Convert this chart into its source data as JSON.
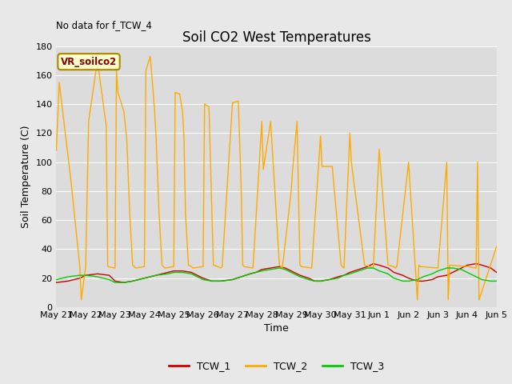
{
  "title": "Soil CO2 West Temperatures",
  "subtitle": "No data for f_TCW_4",
  "xlabel": "Time",
  "ylabel": "Soil Temperature (C)",
  "ylim": [
    0,
    180
  ],
  "yticks": [
    0,
    20,
    40,
    60,
    80,
    100,
    120,
    140,
    160,
    180
  ],
  "fig_bg": "#e8e8e8",
  "plot_bg": "#dcdcdc",
  "legend_label": "VR_soilco2",
  "x_tick_labels": [
    "May 21",
    "May 22",
    "May 23",
    "May 24",
    "May 25",
    "May 26",
    "May 27",
    "May 28",
    "May 29",
    "May 30",
    "May 31",
    "Jun 1",
    "Jun 2",
    "Jun 3",
    "Jun 4",
    "Jun 5"
  ],
  "series_labels": [
    "TCW_1",
    "TCW_2",
    "TCW_3"
  ],
  "colors": [
    "#cc0000",
    "#ffaa00",
    "#00cc00"
  ],
  "tcw1_x": [
    0,
    0.4,
    0.8,
    1.0,
    1.4,
    1.8,
    2.0,
    2.3,
    2.6,
    3.0,
    3.4,
    3.8,
    4.0,
    4.3,
    4.6,
    4.8,
    5.0,
    5.3,
    5.6,
    6.0,
    6.3,
    6.6,
    6.8,
    7.0,
    7.3,
    7.6,
    7.8,
    8.0,
    8.3,
    8.6,
    8.8,
    9.0,
    9.3,
    9.6,
    9.8,
    10.0,
    10.3,
    10.6,
    10.8,
    11.0,
    11.3,
    11.5,
    11.8,
    12.0,
    12.3,
    12.5,
    12.8,
    13.0,
    13.3,
    13.5,
    13.8,
    14.0,
    14.3,
    14.5,
    14.8,
    15.0
  ],
  "tcw1_y": [
    17,
    18,
    20,
    22,
    23,
    22,
    18,
    17,
    18,
    20,
    22,
    24,
    25,
    25,
    24,
    22,
    20,
    18,
    18,
    19,
    21,
    23,
    24,
    26,
    27,
    28,
    27,
    25,
    22,
    20,
    18,
    18,
    19,
    21,
    22,
    24,
    26,
    28,
    30,
    29,
    27,
    24,
    22,
    20,
    18,
    18,
    19,
    21,
    22,
    24,
    27,
    29,
    30,
    29,
    27,
    24
  ],
  "tcw2_x": [
    0,
    0.1,
    0.5,
    0.8,
    0.85,
    1.0,
    1.1,
    1.4,
    1.7,
    1.75,
    2.0,
    2.05,
    2.1,
    2.3,
    2.4,
    2.5,
    2.6,
    2.65,
    2.7,
    3.0,
    3.05,
    3.2,
    3.3,
    3.35,
    3.4,
    3.5,
    3.6,
    3.65,
    3.7,
    4.0,
    4.05,
    4.2,
    4.3,
    4.35,
    4.4,
    4.5,
    4.6,
    4.65,
    5.0,
    5.05,
    5.2,
    5.3,
    5.35,
    5.5,
    5.6,
    5.65,
    6.0,
    6.2,
    6.3,
    6.35,
    6.4,
    6.7,
    7.0,
    7.05,
    7.3,
    7.6,
    7.65,
    7.7,
    8.0,
    8.05,
    8.2,
    8.3,
    8.35,
    8.7,
    9.0,
    9.05,
    9.4,
    9.7,
    9.75,
    9.8,
    10.0,
    10.05,
    10.5,
    10.7,
    10.75,
    10.8,
    11.0,
    11.3,
    11.5,
    11.55,
    11.6,
    12.0,
    12.3,
    12.35,
    12.4,
    13.0,
    13.3,
    13.35,
    13.4,
    14.0,
    14.3,
    14.35,
    14.4,
    15.0
  ],
  "tcw2_y": [
    108,
    155,
    87,
    28,
    5,
    28,
    128,
    170,
    125,
    28,
    27,
    163,
    148,
    135,
    116,
    65,
    29,
    28,
    27,
    28,
    163,
    173,
    148,
    135,
    116,
    65,
    29,
    28,
    27,
    28,
    148,
    147,
    135,
    116,
    65,
    29,
    28,
    27,
    28,
    140,
    138,
    65,
    29,
    28,
    27,
    28,
    141,
    142,
    80,
    29,
    28,
    27,
    128,
    95,
    128,
    29,
    28,
    27,
    80,
    95,
    128,
    29,
    28,
    27,
    118,
    97,
    97,
    29,
    28,
    27,
    120,
    100,
    29,
    28,
    27,
    28,
    109,
    29,
    28,
    27,
    28,
    100,
    5,
    29,
    28,
    27,
    100,
    5,
    29,
    28,
    27,
    100,
    5,
    42
  ],
  "tcw3_x": [
    0,
    0.4,
    0.8,
    1.0,
    1.4,
    1.8,
    2.0,
    2.3,
    2.6,
    3.0,
    3.4,
    3.8,
    4.0,
    4.3,
    4.6,
    4.8,
    5.0,
    5.3,
    5.6,
    6.0,
    6.3,
    6.6,
    6.8,
    7.0,
    7.3,
    7.6,
    7.8,
    8.0,
    8.3,
    8.6,
    8.8,
    9.0,
    9.3,
    9.6,
    9.8,
    10.0,
    10.3,
    10.6,
    10.8,
    11.0,
    11.3,
    11.5,
    11.8,
    12.0,
    12.3,
    12.5,
    12.8,
    13.0,
    13.3,
    13.5,
    13.8,
    14.0,
    14.3,
    14.5,
    14.8,
    15.0
  ],
  "tcw3_y": [
    19,
    21,
    22,
    22,
    21,
    19,
    17,
    17,
    18,
    20,
    22,
    23,
    24,
    24,
    23,
    21,
    19,
    18,
    18,
    19,
    21,
    23,
    24,
    25,
    26,
    27,
    26,
    24,
    21,
    19,
    18,
    18,
    19,
    20,
    22,
    23,
    25,
    27,
    27,
    25,
    23,
    20,
    18,
    18,
    19,
    21,
    23,
    25,
    27,
    27,
    26,
    24,
    21,
    19,
    18,
    18
  ]
}
